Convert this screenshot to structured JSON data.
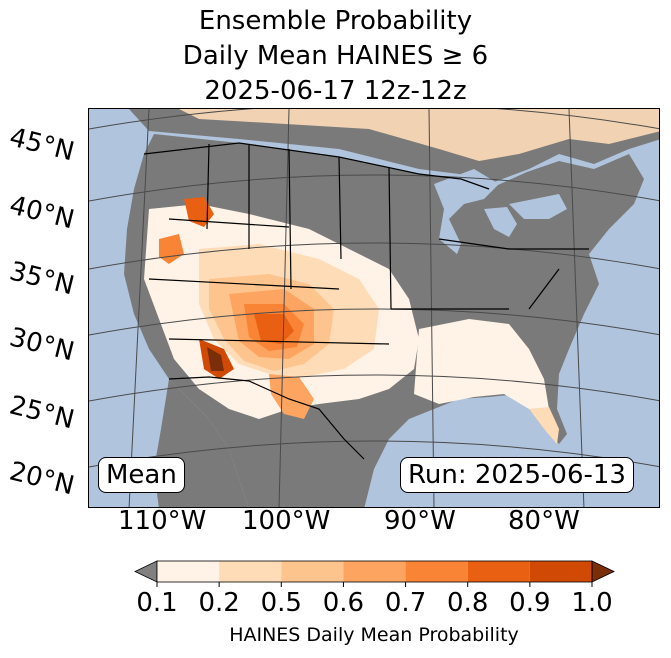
{
  "title": {
    "line1": "Ensemble Probability",
    "line2": "Daily Mean HAINES ≥ 6",
    "line3": "2025-06-17 12z-12z"
  },
  "map": {
    "latitude_labels": [
      "45°N",
      "40°N",
      "35°N",
      "30°N",
      "25°N",
      "20°N"
    ],
    "longitude_labels": [
      "110°W",
      "100°W",
      "90°W",
      "80°W"
    ],
    "mean_label": "Mean",
    "run_label": "Run: 2025-06-13",
    "colors": {
      "ocean": "#b0c4de",
      "land_below_threshold": "#7a7a7a",
      "border_lines": "#000000",
      "grid_lines": "#4a4a4a"
    }
  },
  "colorbar": {
    "label": "HAINES Daily Mean Probability",
    "ticks": [
      "0.1",
      "0.2",
      "0.5",
      "0.6",
      "0.7",
      "0.8",
      "0.9",
      "1.0"
    ],
    "under_color": "#808080",
    "over_color": "#7a2f0a",
    "bins": [
      {
        "from": "0.1",
        "to": "0.2",
        "color": "#fff2e6"
      },
      {
        "from": "0.2",
        "to": "0.5",
        "color": "#fedcb8"
      },
      {
        "from": "0.5",
        "to": "0.6",
        "color": "#fdc48e"
      },
      {
        "from": "0.6",
        "to": "0.7",
        "color": "#fda460"
      },
      {
        "from": "0.7",
        "to": "0.8",
        "color": "#f98436"
      },
      {
        "from": "0.8",
        "to": "0.9",
        "color": "#ea6012"
      },
      {
        "from": "0.9",
        "to": "1.0",
        "color": "#d04a05"
      }
    ]
  }
}
